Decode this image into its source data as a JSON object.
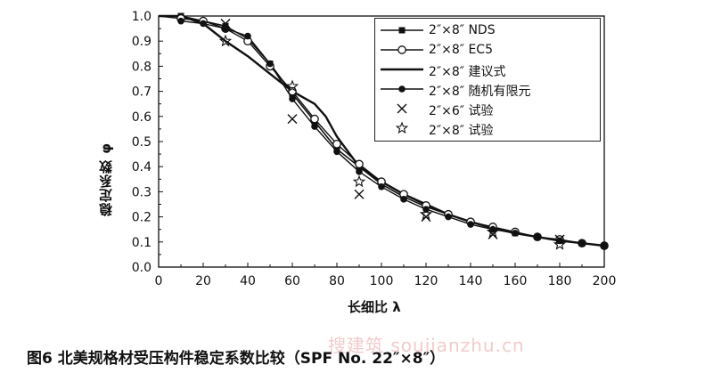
{
  "chart_data": {
    "type": "line",
    "xlabel": "长细比 λ",
    "ylabel": "稳定系数 φ",
    "xlim": [
      0,
      200
    ],
    "ylim": [
      0.0,
      1.0
    ],
    "xticks": [
      "0",
      "20",
      "40",
      "60",
      "80",
      "100",
      "120",
      "140",
      "160",
      "180",
      "200"
    ],
    "yticks": [
      "0.0",
      "0.1",
      "0.2",
      "0.3",
      "0.4",
      "0.5",
      "0.6",
      "0.7",
      "0.8",
      "0.9",
      "1.0"
    ],
    "grid": false,
    "legend_position": "top-right",
    "series": [
      {
        "name": "2″×8″ NDS",
        "marker": "filled-square",
        "line": true,
        "x": [
          0,
          10,
          20,
          30,
          40,
          50,
          60,
          70,
          80,
          90,
          100,
          110,
          120,
          130,
          140,
          150,
          160,
          170,
          180,
          190,
          200
        ],
        "y": [
          1.0,
          1.0,
          0.98,
          0.96,
          0.91,
          0.81,
          0.69,
          0.58,
          0.47,
          0.4,
          0.33,
          0.28,
          0.24,
          0.21,
          0.18,
          0.155,
          0.135,
          0.12,
          0.105,
          0.095,
          0.085
        ]
      },
      {
        "name": "2″×8″ EC5",
        "marker": "open-circle",
        "line": true,
        "x": [
          0,
          10,
          20,
          30,
          40,
          50,
          60,
          70,
          80,
          90,
          100,
          110,
          120,
          130,
          140,
          150,
          160,
          170,
          180,
          190,
          200
        ],
        "y": [
          1.0,
          0.99,
          0.98,
          0.95,
          0.9,
          0.8,
          0.7,
          0.59,
          0.49,
          0.41,
          0.34,
          0.29,
          0.245,
          0.21,
          0.18,
          0.16,
          0.14,
          0.12,
          0.11,
          0.095,
          0.085
        ]
      },
      {
        "name": "2″×8″ 建议式",
        "marker": "none",
        "line": true,
        "x": [
          0,
          10,
          20,
          30,
          40,
          50,
          60,
          70,
          75,
          80,
          90,
          100,
          110,
          120,
          130,
          140,
          150,
          160,
          170,
          180,
          190,
          200
        ],
        "y": [
          1.0,
          1.0,
          0.97,
          0.9,
          0.84,
          0.77,
          0.7,
          0.65,
          0.6,
          0.52,
          0.4,
          0.34,
          0.29,
          0.25,
          0.21,
          0.18,
          0.155,
          0.135,
          0.12,
          0.105,
          0.095,
          0.085
        ]
      },
      {
        "name": "2″×8″ 随机有限元",
        "marker": "filled-circle",
        "line": true,
        "x": [
          10,
          20,
          30,
          40,
          50,
          60,
          70,
          80,
          90,
          100,
          110,
          120,
          130,
          140,
          150,
          160,
          170,
          180,
          190,
          200
        ],
        "y": [
          0.98,
          0.97,
          0.95,
          0.92,
          0.81,
          0.67,
          0.56,
          0.46,
          0.38,
          0.32,
          0.27,
          0.23,
          0.2,
          0.17,
          0.15,
          0.135,
          0.12,
          0.105,
          0.095,
          0.085
        ]
      },
      {
        "name": "2″×6″ 试验",
        "marker": "x",
        "line": false,
        "x": [
          30,
          60,
          90,
          120,
          150,
          180
        ],
        "y": [
          0.97,
          0.59,
          0.29,
          0.2,
          0.13,
          0.11
        ]
      },
      {
        "name": "2″×8″ 试验",
        "marker": "star",
        "line": false,
        "x": [
          30,
          60,
          90,
          120,
          150,
          180
        ],
        "y": [
          0.9,
          0.72,
          0.34,
          0.21,
          0.14,
          0.09
        ]
      }
    ]
  },
  "caption": "图6 北美规格材受压构件稳定系数比较（SPF No. 22″×8″）",
  "watermark": "搜建筑 soujianzhu.cn"
}
